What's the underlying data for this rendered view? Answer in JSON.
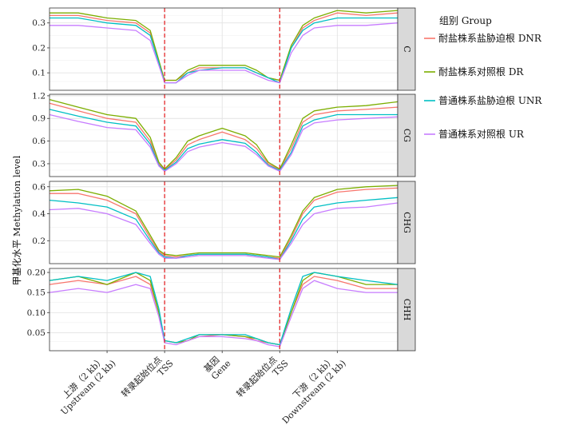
{
  "chart_data": {
    "type": "line",
    "ylabel": "甲基化水平 Methylation level",
    "x_tick_labels": [
      {
        "zh": "上游（2 kb）",
        "en": "Upstream (2 kb)"
      },
      {
        "zh": "转录起始位点",
        "en": "TSS"
      },
      {
        "zh": "基因",
        "en": "Gene"
      },
      {
        "zh": "转录起始位点",
        "en": "TSS"
      },
      {
        "zh": "下游（2 kb）",
        "en": "Downstream (2 kb)"
      }
    ],
    "x_tick_positions": [
      20,
      40,
      60,
      80,
      100
    ],
    "tss_positions": [
      40,
      80
    ],
    "xlim": [
      0,
      121
    ],
    "legend": {
      "title": "组别 Group",
      "placement": "right",
      "entries": [
        {
          "label": "耐盐株系盐胁迫根 DNR",
          "color": "#F8766D"
        },
        {
          "label": "耐盐株系对照根 DR",
          "color": "#7CAE00"
        },
        {
          "label": "普通株系盐胁迫根 UNR",
          "color": "#00BFC4"
        },
        {
          "label": "普通株系对照根 UR",
          "color": "#C77CFF"
        }
      ]
    },
    "panels": [
      {
        "strip": "C",
        "ylim": [
          0.03,
          0.36
        ],
        "yticks": [
          0.1,
          0.2,
          0.3
        ],
        "ytick_labels": [
          "0.1",
          "0.2",
          "0.3"
        ],
        "x": [
          0,
          10,
          20,
          30,
          35,
          38,
          40,
          44,
          48,
          52,
          60,
          68,
          72,
          76,
          80,
          84,
          88,
          92,
          100,
          110,
          121
        ],
        "series": [
          {
            "name": "DNR",
            "values": [
              0.33,
              0.33,
              0.31,
              0.3,
              0.26,
              0.14,
              0.07,
              0.07,
              0.1,
              0.12,
              0.12,
              0.12,
              0.1,
              0.08,
              0.07,
              0.2,
              0.28,
              0.31,
              0.34,
              0.33,
              0.34
            ]
          },
          {
            "name": "DR",
            "values": [
              0.34,
              0.34,
              0.32,
              0.31,
              0.27,
              0.15,
              0.07,
              0.07,
              0.11,
              0.13,
              0.13,
              0.13,
              0.11,
              0.08,
              0.07,
              0.21,
              0.29,
              0.32,
              0.35,
              0.34,
              0.35
            ]
          },
          {
            "name": "UNR",
            "values": [
              0.32,
              0.32,
              0.3,
              0.29,
              0.25,
              0.14,
              0.06,
              0.06,
              0.1,
              0.11,
              0.12,
              0.12,
              0.1,
              0.08,
              0.06,
              0.2,
              0.27,
              0.3,
              0.32,
              0.32,
              0.32
            ]
          },
          {
            "name": "UR",
            "values": [
              0.29,
              0.29,
              0.28,
              0.27,
              0.23,
              0.13,
              0.06,
              0.06,
              0.09,
              0.11,
              0.11,
              0.11,
              0.09,
              0.07,
              0.06,
              0.18,
              0.25,
              0.28,
              0.29,
              0.29,
              0.3
            ]
          }
        ]
      },
      {
        "strip": "CG",
        "ylim": [
          0.13,
          1.22
        ],
        "yticks": [
          0.3,
          0.6,
          0.9,
          1.2
        ],
        "ytick_labels": [
          "0.3",
          "0.6",
          "0.9",
          "1.2"
        ],
        "x": [
          0,
          10,
          20,
          30,
          35,
          38,
          40,
          44,
          48,
          52,
          60,
          68,
          72,
          76,
          80,
          84,
          88,
          92,
          100,
          110,
          121
        ],
        "series": [
          {
            "name": "DNR",
            "values": [
              1.1,
              1.0,
              0.9,
              0.85,
              0.6,
              0.3,
              0.22,
              0.35,
              0.55,
              0.62,
              0.72,
              0.62,
              0.5,
              0.3,
              0.22,
              0.5,
              0.85,
              0.95,
              1.0,
              1.02,
              1.05
            ]
          },
          {
            "name": "DR",
            "values": [
              1.15,
              1.05,
              0.95,
              0.9,
              0.65,
              0.32,
              0.23,
              0.38,
              0.6,
              0.67,
              0.77,
              0.67,
              0.55,
              0.32,
              0.23,
              0.55,
              0.9,
              1.0,
              1.05,
              1.07,
              1.12
            ]
          },
          {
            "name": "UNR",
            "values": [
              1.02,
              0.93,
              0.85,
              0.8,
              0.56,
              0.28,
              0.21,
              0.32,
              0.5,
              0.56,
              0.62,
              0.57,
              0.45,
              0.28,
              0.21,
              0.45,
              0.8,
              0.88,
              0.95,
              0.95,
              0.95
            ]
          },
          {
            "name": "UR",
            "values": [
              0.95,
              0.86,
              0.78,
              0.75,
              0.52,
              0.27,
              0.2,
              0.3,
              0.46,
              0.52,
              0.58,
              0.53,
              0.42,
              0.27,
              0.2,
              0.42,
              0.75,
              0.84,
              0.88,
              0.9,
              0.92
            ]
          }
        ]
      },
      {
        "strip": "CHG",
        "ylim": [
          0.03,
          0.64
        ],
        "yticks": [
          0.2,
          0.4,
          0.6
        ],
        "ytick_labels": [
          "0.2",
          "0.4",
          "0.6"
        ],
        "x": [
          0,
          10,
          20,
          30,
          35,
          38,
          40,
          44,
          48,
          52,
          60,
          68,
          72,
          76,
          80,
          84,
          88,
          92,
          100,
          110,
          121
        ],
        "series": [
          {
            "name": "DNR",
            "values": [
              0.55,
              0.55,
              0.5,
              0.4,
              0.22,
              0.12,
              0.09,
              0.08,
              0.09,
              0.1,
              0.1,
              0.1,
              0.09,
              0.08,
              0.07,
              0.22,
              0.4,
              0.5,
              0.56,
              0.58,
              0.59
            ]
          },
          {
            "name": "DR",
            "values": [
              0.57,
              0.58,
              0.53,
              0.42,
              0.24,
              0.13,
              0.1,
              0.09,
              0.1,
              0.11,
              0.11,
              0.11,
              0.1,
              0.09,
              0.08,
              0.24,
              0.42,
              0.52,
              0.58,
              0.6,
              0.61
            ]
          },
          {
            "name": "UNR",
            "values": [
              0.5,
              0.48,
              0.45,
              0.36,
              0.2,
              0.11,
              0.08,
              0.07,
              0.09,
              0.1,
              0.1,
              0.1,
              0.09,
              0.08,
              0.06,
              0.2,
              0.36,
              0.45,
              0.48,
              0.5,
              0.52
            ]
          },
          {
            "name": "UR",
            "values": [
              0.43,
              0.44,
              0.4,
              0.32,
              0.18,
              0.1,
              0.07,
              0.07,
              0.08,
              0.09,
              0.09,
              0.09,
              0.08,
              0.07,
              0.06,
              0.18,
              0.32,
              0.4,
              0.44,
              0.45,
              0.48
            ]
          }
        ]
      },
      {
        "strip": "CHH",
        "ylim": [
          0.005,
          0.21
        ],
        "yticks": [
          0.05,
          0.1,
          0.15,
          0.2
        ],
        "ytick_labels": [
          "0.05",
          "0.10",
          "0.15",
          "0.20"
        ],
        "x": [
          0,
          10,
          20,
          30,
          35,
          38,
          40,
          44,
          48,
          52,
          60,
          68,
          72,
          76,
          80,
          84,
          88,
          92,
          100,
          110,
          121
        ],
        "series": [
          {
            "name": "DNR",
            "values": [
              0.17,
              0.18,
              0.17,
              0.19,
              0.17,
              0.1,
              0.03,
              0.025,
              0.03,
              0.04,
              0.045,
              0.04,
              0.03,
              0.025,
              0.02,
              0.1,
              0.17,
              0.19,
              0.18,
              0.16,
              0.16
            ]
          },
          {
            "name": "DR",
            "values": [
              0.18,
              0.19,
              0.17,
              0.2,
              0.18,
              0.1,
              0.03,
              0.025,
              0.03,
              0.045,
              0.045,
              0.04,
              0.035,
              0.025,
              0.02,
              0.1,
              0.18,
              0.2,
              0.19,
              0.17,
              0.17
            ]
          },
          {
            "name": "UNR",
            "values": [
              0.18,
              0.19,
              0.18,
              0.2,
              0.19,
              0.11,
              0.03,
              0.025,
              0.035,
              0.045,
              0.045,
              0.045,
              0.035,
              0.025,
              0.02,
              0.11,
              0.19,
              0.2,
              0.19,
              0.18,
              0.17
            ]
          },
          {
            "name": "UR",
            "values": [
              0.15,
              0.16,
              0.15,
              0.17,
              0.16,
              0.09,
              0.025,
              0.02,
              0.03,
              0.04,
              0.04,
              0.035,
              0.03,
              0.02,
              0.015,
              0.09,
              0.16,
              0.18,
              0.16,
              0.15,
              0.15
            ]
          }
        ]
      }
    ]
  }
}
